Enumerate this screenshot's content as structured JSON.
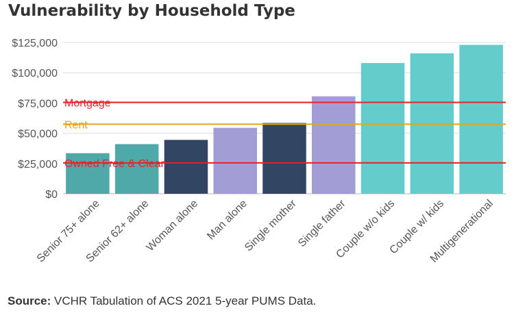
{
  "chart_data": {
    "type": "bar",
    "title": "Vulnerability by Household Type",
    "categories": [
      "Senior 75+ alone",
      "Senior 62+ alone",
      "Woman alone",
      "Man alone",
      "Single mother",
      "Single father",
      "Couple w/o kids",
      "Couple  w/ kids",
      "Multigenerational"
    ],
    "values": [
      33500,
      41000,
      44500,
      54500,
      58500,
      80500,
      108000,
      116000,
      123000
    ],
    "bar_colors": [
      "#4ea9a8",
      "#4ea9a8",
      "#324562",
      "#a39dd6",
      "#324562",
      "#a39dd6",
      "#64cccb",
      "#64cccb",
      "#64cccb"
    ],
    "ylim": [
      0,
      125000
    ],
    "yticks": [
      0,
      25000,
      50000,
      75000,
      100000,
      125000
    ],
    "ytick_labels": [
      "$0",
      "$25,000",
      "$50,000",
      "$75,000",
      "$100,000",
      "$125,000"
    ],
    "grid": true,
    "reference_lines": [
      {
        "label": "Mortgage",
        "value": 75500,
        "color": "#e8202a"
      },
      {
        "label": "Rent",
        "value": 57500,
        "color": "#e8a317"
      },
      {
        "label": "Owned Free & Clear",
        "value": 25500,
        "color": "#e8202a"
      }
    ]
  },
  "source": {
    "label": "Source:",
    "text": " VCHR Tabulation of ACS 2021 5-year PUMS Data."
  }
}
